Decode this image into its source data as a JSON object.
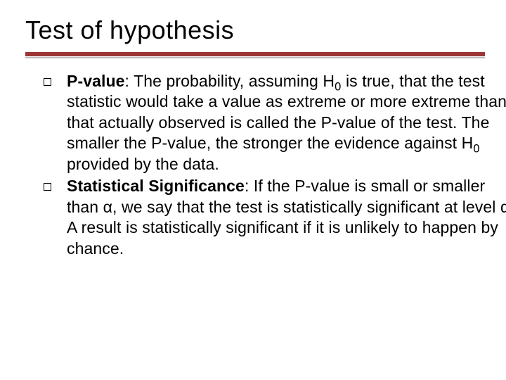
{
  "title": "Test of hypothesis",
  "rule": {
    "color_top": "#9c3535",
    "color_bottom": "#c0c0c0"
  },
  "bullets": [
    {
      "term": "P-value",
      "text": ": The probability, assuming H<sub>0</sub> is true, that the test statistic would take a value as extreme or more extreme than that actually observed is called the P-value of the test. The smaller the P-value, the stronger the evidence against H<sub>0</sub> provided by the data."
    },
    {
      "term": "Statistical Significance",
      "text": ": If the P-value is small or smaller than α, we say that the test is statistically significant at level α. A result is statistically significant if it is unlikely to happen by chance."
    }
  ],
  "text_color": "#000000",
  "background_color": "#ffffff",
  "title_fontsize": 36,
  "body_fontsize": 23
}
